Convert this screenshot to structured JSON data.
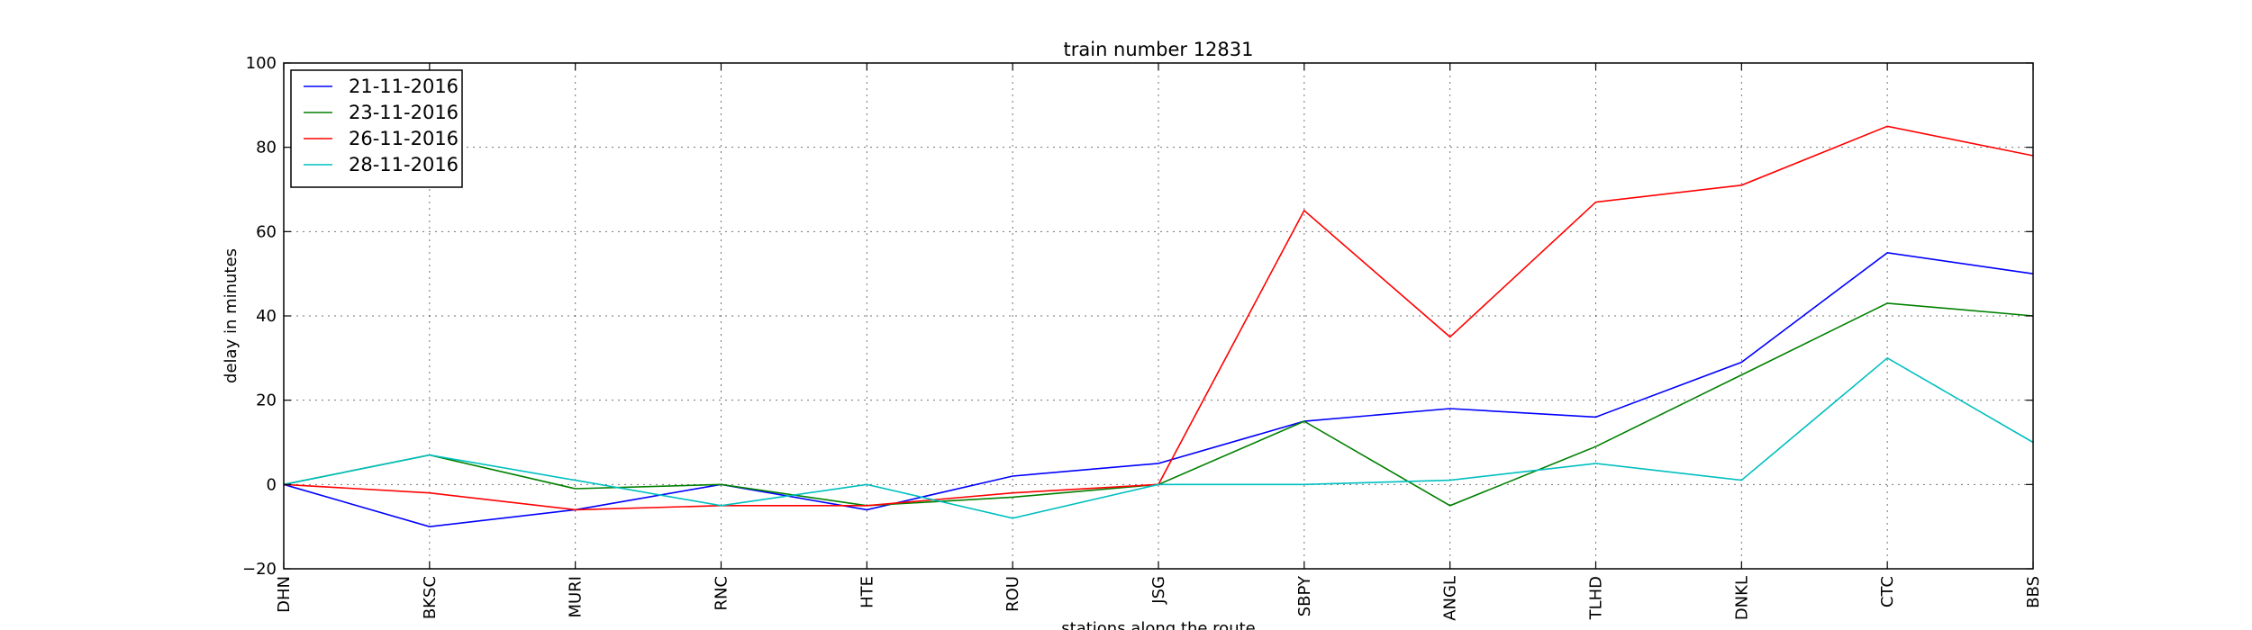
{
  "chart_data": {
    "type": "line",
    "title": "train number 12831",
    "xlabel": "stations along the route",
    "ylabel": "delay in minutes",
    "categories": [
      "DHN",
      "BKSC",
      "MURI",
      "RNC",
      "HTE",
      "ROU",
      "JSG",
      "SBPY",
      "ANGL",
      "TLHD",
      "DNKL",
      "CTC",
      "BBS"
    ],
    "ylim": [
      -20,
      100
    ],
    "yticks": [
      -20,
      0,
      20,
      40,
      60,
      80,
      100
    ],
    "grid": true,
    "legend_position": "top-left",
    "series": [
      {
        "name": "21-11-2016",
        "color": "#0000ff",
        "values": [
          0,
          -10,
          -6,
          0,
          -6,
          2,
          5,
          15,
          18,
          16,
          29,
          55,
          50
        ]
      },
      {
        "name": "23-11-2016",
        "color": "#008000",
        "values": [
          0,
          7,
          -1,
          0,
          -5,
          -3,
          0,
          15,
          -5,
          9,
          26,
          43,
          40
        ]
      },
      {
        "name": "26-11-2016",
        "color": "#ff0000",
        "values": [
          0,
          -2,
          -6,
          -5,
          -5,
          -2,
          0,
          65,
          35,
          67,
          71,
          85,
          78
        ]
      },
      {
        "name": "28-11-2016",
        "color": "#00bfbf",
        "values": [
          0,
          7,
          1,
          -5,
          0,
          -8,
          0,
          0,
          1,
          5,
          1,
          30,
          10
        ]
      }
    ]
  }
}
